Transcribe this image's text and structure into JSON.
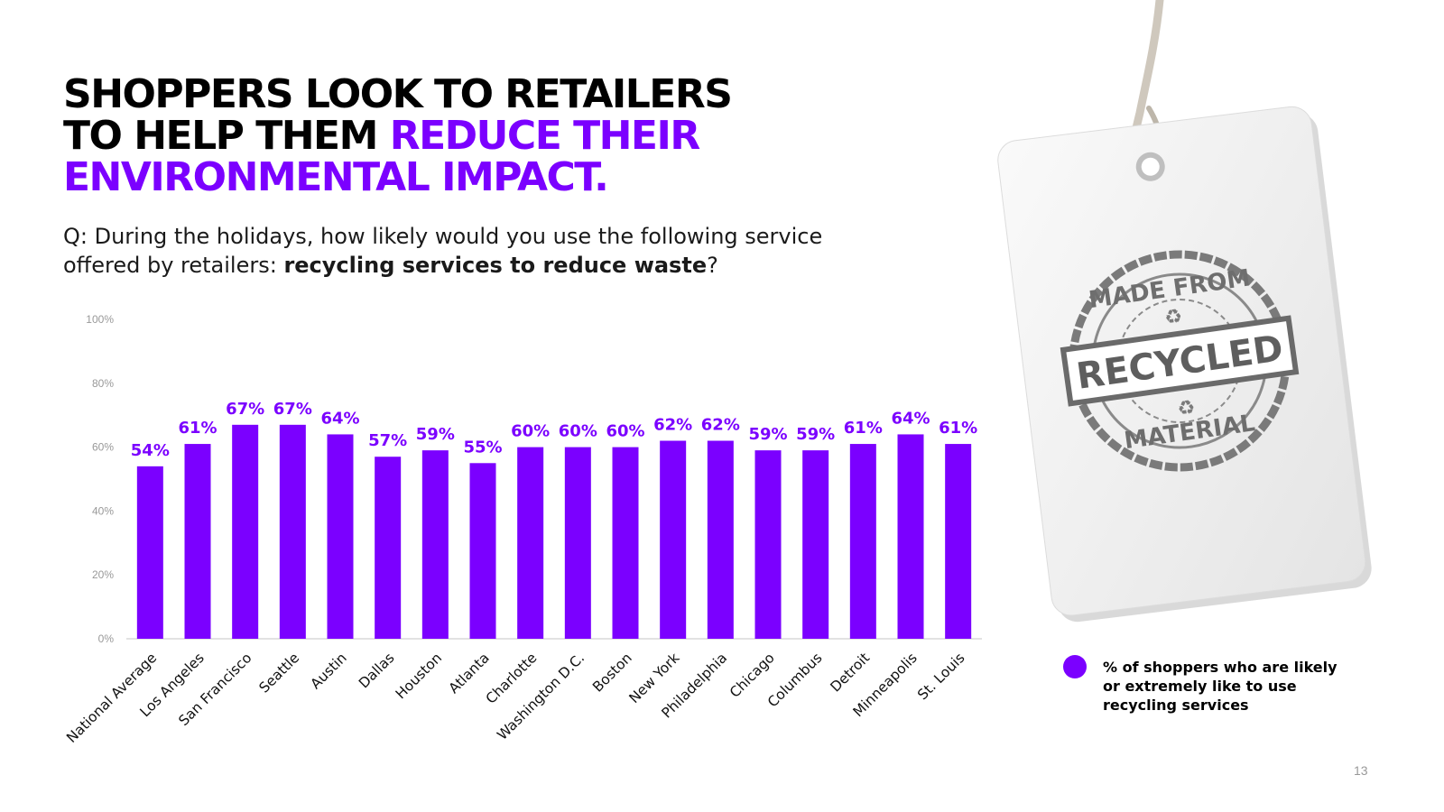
{
  "title": {
    "line1": "SHOPPERS LOOK TO RETAILERS",
    "line2_black": "TO HELP THEM ",
    "line2_purple": "REDUCE THEIR",
    "line3_purple": "ENVIRONMENTAL IMPACT."
  },
  "question": {
    "prefix": "Q: During the holidays, how likely would you use the following service offered by retailers: ",
    "bold": "recycling services to reduce waste",
    "suffix": "?"
  },
  "chart_data": {
    "type": "bar",
    "categories": [
      "National Average",
      "Los Angeles",
      "San Francisco",
      "Seattle",
      "Austin",
      "Dallas",
      "Houston",
      "Atlanta",
      "Charlotte",
      "Washington D.C.",
      "Boston",
      "New York",
      "Philadelphia",
      "Chicago",
      "Columbus",
      "Detroit",
      "Minneapolis",
      "St. Louis"
    ],
    "values": [
      54,
      61,
      67,
      67,
      64,
      57,
      59,
      55,
      60,
      60,
      60,
      62,
      62,
      59,
      59,
      61,
      64,
      61
    ],
    "value_labels": [
      "54%",
      "61%",
      "67%",
      "67%",
      "64%",
      "57%",
      "59%",
      "55%",
      "60%",
      "60%",
      "60%",
      "62%",
      "62%",
      "59%",
      "59%",
      "61%",
      "64%",
      "61%"
    ],
    "yticks": [
      0,
      20,
      40,
      60,
      80,
      100
    ],
    "ytick_labels": [
      "0%",
      "20%",
      "40%",
      "60%",
      "80%",
      "100%"
    ],
    "ylim": [
      0,
      100
    ],
    "grid": false,
    "series_name": "% of shoppers who are likely or extremely like to use recycling services",
    "color": "#7B00FF"
  },
  "tag": {
    "stamp_top": "MADE FROM",
    "stamp_middle": "RECYCLED",
    "stamp_bottom": "MATERIAL"
  },
  "legend": {
    "label": "% of shoppers who are likely or extremely like to use recycling services"
  },
  "page_number": "13",
  "colors": {
    "accent": "#7B00FF",
    "axis": "#d9d9d9",
    "tick_text": "#999999"
  }
}
